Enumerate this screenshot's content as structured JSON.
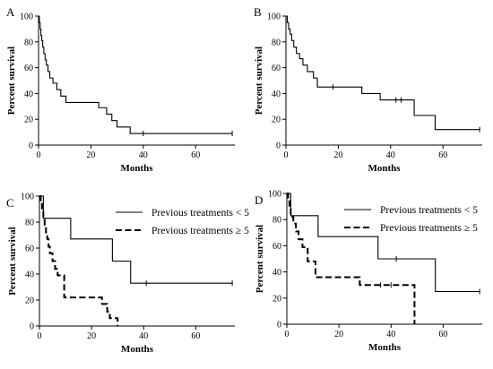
{
  "chart_data": [
    {
      "panel": "A",
      "type": "line",
      "step": true,
      "xlabel": "Months",
      "ylabel": "Percent survival",
      "xlim": [
        0,
        75
      ],
      "ylim": [
        0,
        100
      ],
      "xticks": [
        0,
        20,
        40,
        60
      ],
      "yticks": [
        0,
        20,
        40,
        60,
        80,
        100
      ],
      "grid": false,
      "series": [
        {
          "name": "",
          "dash": "solid",
          "x": [
            0,
            0.3,
            0.6,
            0.9,
            1.2,
            1.6,
            2.0,
            2.5,
            3.0,
            3.6,
            4.3,
            5.5,
            7.0,
            8.5,
            10.5,
            23,
            26,
            28,
            30,
            35,
            74
          ],
          "y": [
            100,
            95,
            90,
            85,
            81,
            76,
            71,
            66,
            62,
            57,
            52,
            48,
            43,
            38,
            33,
            29,
            24,
            19,
            14,
            9,
            9
          ],
          "censored": [
            [
              40,
              9
            ],
            [
              74,
              9
            ]
          ]
        }
      ]
    },
    {
      "panel": "B",
      "type": "line",
      "step": true,
      "xlabel": "Months",
      "ylabel": "Percent survival",
      "xlim": [
        0,
        75
      ],
      "ylim": [
        0,
        100
      ],
      "xticks": [
        0,
        20,
        40,
        60
      ],
      "yticks": [
        0,
        20,
        40,
        60,
        80,
        100
      ],
      "grid": false,
      "series": [
        {
          "name": "",
          "dash": "solid",
          "x": [
            0,
            0.5,
            1.0,
            1.6,
            2.2,
            3.0,
            4.0,
            5.2,
            6.5,
            8.2,
            10.5,
            12,
            29,
            36,
            49,
            57,
            74
          ],
          "y": [
            100,
            95,
            90,
            86,
            81,
            76,
            71,
            67,
            62,
            57,
            52,
            45,
            40,
            35,
            23,
            12,
            12
          ],
          "censored": [
            [
              18,
              45
            ],
            [
              42,
              35
            ],
            [
              44,
              35
            ],
            [
              74,
              12
            ]
          ]
        }
      ]
    },
    {
      "panel": "C",
      "type": "line",
      "step": true,
      "xlabel": "Months",
      "ylabel": "Percent survival",
      "xlim": [
        0,
        75
      ],
      "ylim": [
        0,
        100
      ],
      "xticks": [
        0,
        20,
        40,
        60
      ],
      "yticks": [
        0,
        20,
        40,
        60,
        80,
        100
      ],
      "grid": false,
      "legend": {
        "placement": "top-right"
      },
      "series": [
        {
          "name": "Previous treatments < 5",
          "dash": "solid",
          "x": [
            0,
            1.5,
            12,
            28,
            35,
            74
          ],
          "y": [
            100,
            83,
            67,
            50,
            33,
            33
          ],
          "censored": [
            [
              41,
              33
            ],
            [
              74,
              33
            ]
          ]
        },
        {
          "name": "Previous treatments ≥ 5",
          "dash": "dashed",
          "x": [
            0,
            0.5,
            1.0,
            1.5,
            2.0,
            2.5,
            3.0,
            3.5,
            4.0,
            5.0,
            6.0,
            7.0,
            9.5,
            22,
            24,
            26,
            27,
            29,
            30
          ],
          "y": [
            100,
            94,
            89,
            83,
            78,
            72,
            67,
            61,
            56,
            50,
            44,
            39,
            22,
            22,
            17,
            11,
            6,
            6,
            0
          ],
          "censored": []
        }
      ]
    },
    {
      "panel": "D",
      "type": "line",
      "step": true,
      "xlabel": "Months",
      "ylabel": "Percent survival",
      "xlim": [
        0,
        75
      ],
      "ylim": [
        0,
        100
      ],
      "xticks": [
        0,
        20,
        40,
        60
      ],
      "yticks": [
        0,
        20,
        40,
        60,
        80,
        100
      ],
      "grid": false,
      "legend": {
        "placement": "top-right"
      },
      "series": [
        {
          "name": "Previous treatments < 5",
          "dash": "solid",
          "x": [
            0,
            1.5,
            12,
            35,
            57,
            74
          ],
          "y": [
            100,
            83,
            67,
            50,
            25,
            25
          ],
          "censored": [
            [
              42,
              50
            ],
            [
              74,
              25
            ]
          ]
        },
        {
          "name": "Previous treatments ≥ 5",
          "dash": "dashed",
          "x": [
            0,
            0.5,
            1.0,
            1.5,
            2.5,
            3.5,
            4.5,
            6.0,
            8.0,
            11,
            28,
            49
          ],
          "y": [
            100,
            94,
            88,
            82,
            77,
            71,
            65,
            59,
            48,
            36,
            30,
            0
          ],
          "censored": [
            [
              36,
              30
            ],
            [
              40,
              30
            ]
          ]
        }
      ]
    }
  ]
}
